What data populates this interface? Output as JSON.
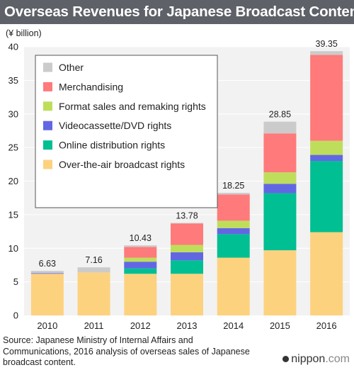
{
  "title": "Overseas Revenues for Japanese Broadcast Content",
  "source": "Source: Japanese Ministry of Internal Affairs and Communications, 2016 analysis of overseas sales of Japanese broadcast content.",
  "brand": {
    "name": "nippon",
    "tld": ".com"
  },
  "chart_data": {
    "type": "bar",
    "stacked": true,
    "ylabel": "(¥ billion)",
    "ylim": [
      0,
      40
    ],
    "yticks": [
      0,
      5,
      10,
      15,
      20,
      25,
      30,
      35,
      40
    ],
    "grid": true,
    "legend_position": "top-left",
    "categories": [
      "2010",
      "2011",
      "2012",
      "2013",
      "2014",
      "2015",
      "2016"
    ],
    "totals": [
      "6.63",
      "7.16",
      "10.43",
      "13.78",
      "18.25",
      "28.85",
      "39.35"
    ],
    "series": [
      {
        "name": "Over-the-air broadcast rights",
        "color": "#fdd27f",
        "values": [
          6.2,
          6.4,
          6.2,
          6.2,
          8.6,
          9.7,
          12.4
        ]
      },
      {
        "name": "Online distribution rights",
        "color": "#00bf93",
        "values": [
          0.0,
          0.0,
          0.8,
          2.0,
          3.5,
          8.5,
          10.6
        ]
      },
      {
        "name": "Videocassette/DVD rights",
        "color": "#6167e3",
        "values": [
          0.1,
          0.0,
          1.0,
          1.2,
          0.9,
          1.4,
          0.9
        ]
      },
      {
        "name": "Format sales and remaking rights",
        "color": "#bede5b",
        "values": [
          0.0,
          0.0,
          0.6,
          1.1,
          1.1,
          1.7,
          2.1
        ]
      },
      {
        "name": "Merchandising",
        "color": "#ff7a7a",
        "values": [
          0.0,
          0.0,
          1.6,
          3.2,
          3.9,
          5.8,
          12.8
        ]
      },
      {
        "name": "Other",
        "color": "#cbcbcb",
        "values": [
          0.33,
          0.76,
          0.23,
          0.08,
          0.25,
          1.75,
          0.55
        ]
      }
    ]
  }
}
